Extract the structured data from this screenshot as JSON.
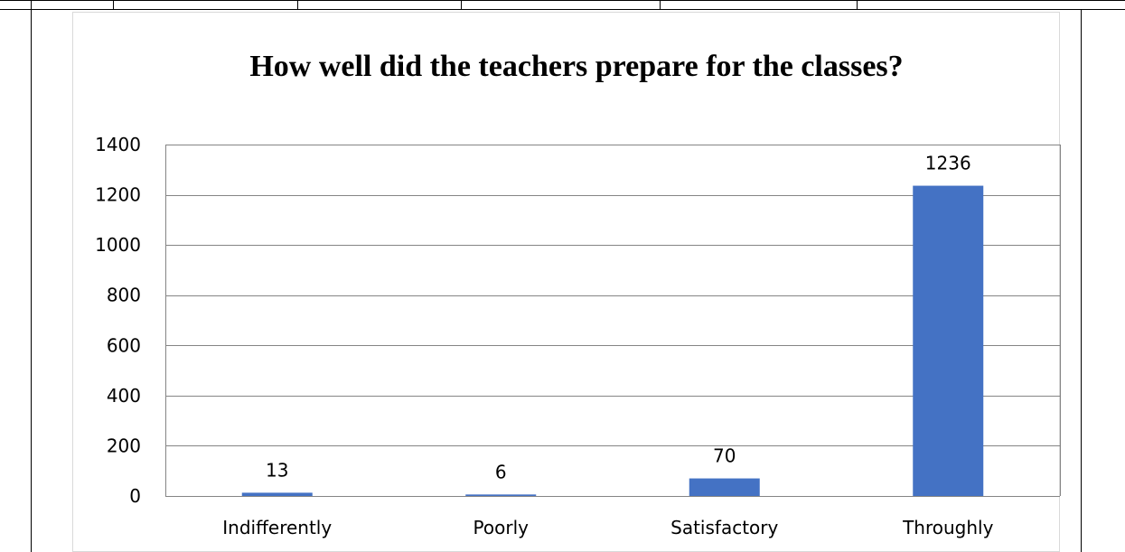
{
  "chart_data": {
    "type": "bar",
    "title": "How well did the teachers prepare for the classes?",
    "categories": [
      "Indifferently",
      "Poorly",
      "Satisfactory",
      "Throughly"
    ],
    "values": [
      13,
      6,
      70,
      1236
    ],
    "data_labels": [
      "13",
      "6",
      "70",
      "1236"
    ],
    "ylim": [
      0,
      1400
    ],
    "yticks": [
      0,
      200,
      400,
      600,
      800,
      1000,
      1200,
      1400
    ],
    "ytick_labels": [
      "0",
      "200",
      "400",
      "600",
      "800",
      "1000",
      "1200",
      "1400"
    ],
    "grid": true,
    "legend": "none",
    "bar_color": "#4472C4"
  }
}
